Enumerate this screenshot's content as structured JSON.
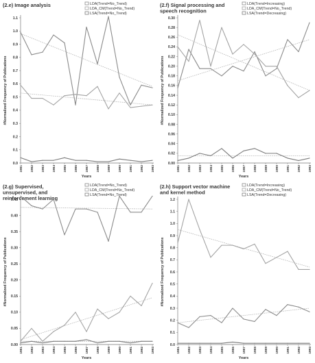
{
  "chart_data": [
    {
      "type": "line",
      "title": "(2.e) Image analysis",
      "xlabel": "Years",
      "ylabel": "#Normalized Frequency of Publications",
      "categories": [
        "1981",
        "1982",
        "1983",
        "1984",
        "1985",
        "1986",
        "1987",
        "1988",
        "1989",
        "1990",
        "1991",
        "1992",
        "1993"
      ],
      "ylim": [
        0,
        1.1
      ],
      "yticks": [
        "0.0",
        "0.1",
        "0.2",
        "0.3",
        "0.4",
        "0.5",
        "0.6",
        "0.7",
        "0.8",
        "0.9",
        "1.0",
        "1.1"
      ],
      "grid": false,
      "legend_position": "top-right",
      "series": [
        {
          "name": "LDA(Trend=No_Trend)",
          "values": [
            0.99,
            0.82,
            0.84,
            0.97,
            0.91,
            0.44,
            1.03,
            0.75,
            1.11,
            0.65,
            0.44,
            0.59,
            0.57
          ],
          "trend": [
            0.98,
            0.58
          ]
        },
        {
          "name": "LDA_CM(Trend=No_Trend)",
          "values": [
            0.59,
            0.49,
            0.49,
            0.44,
            0.51,
            0.52,
            0.51,
            0.58,
            0.41,
            0.53,
            0.42,
            0.43,
            0.44
          ],
          "trend": [
            0.53,
            0.44
          ]
        },
        {
          "name": "LSA(Trend=No_Trend)",
          "values": [
            0.04,
            0.01,
            0.02,
            0.02,
            0.04,
            0.02,
            0.02,
            0.01,
            0.01,
            0.03,
            0.02,
            0.01,
            0.02
          ]
        }
      ]
    },
    {
      "type": "line",
      "title": "(2.f) Signal processing and speech recognition",
      "xlabel": "Years",
      "ylabel": "#Normalized Frequency of Publications",
      "categories": [
        "1981",
        "1982",
        "1983",
        "1984",
        "1985",
        "1986",
        "1987",
        "1988",
        "1989",
        "1990",
        "1991",
        "1992",
        "1993"
      ],
      "ylim": [
        0,
        0.3
      ],
      "yticks": [
        "0.00",
        "0.02",
        "0.04",
        "0.06",
        "0.08",
        "0.10",
        "0.12",
        "0.14",
        "0.16",
        "0.18",
        "0.20",
        "0.22",
        "0.24",
        "0.26",
        "0.28",
        "0.30"
      ],
      "grid": false,
      "legend_position": "top-right",
      "series": [
        {
          "name": "LDA(Trend=Increasing)",
          "values": [
            0.155,
            0.235,
            0.195,
            0.195,
            0.18,
            0.2,
            0.19,
            0.23,
            0.18,
            0.195,
            0.255,
            0.23,
            0.29
          ],
          "trend": [
            0.17,
            0.255
          ]
        },
        {
          "name": "LDA_CM(Trend=No_Trend)",
          "values": [
            0.24,
            0.21,
            0.295,
            0.2,
            0.28,
            0.225,
            0.245,
            0.225,
            0.2,
            0.2,
            0.16,
            0.135,
            0.15
          ],
          "trend": [
            0.265,
            0.15
          ]
        },
        {
          "name": "LSA(Trend=Decreasing)",
          "values": [
            0.005,
            0.01,
            0.02,
            0.015,
            0.03,
            0.01,
            0.025,
            0.03,
            0.02,
            0.02,
            0.01,
            0.005,
            0.01
          ],
          "trend": [
            0.015,
            0.015
          ]
        }
      ]
    },
    {
      "type": "line",
      "title": "(2.g) Supervised, unsupervised, and reinforcement learning",
      "xlabel": "Years",
      "ylabel": "#Normalized Frequency of Publications",
      "categories": [
        "1981",
        "1982",
        "1983",
        "1984",
        "1985",
        "1986",
        "1987",
        "1988",
        "1989",
        "1990",
        "1991",
        "1992",
        "1993"
      ],
      "ylim": [
        0,
        0.45
      ],
      "yticks": [
        "0.00",
        "0.05",
        "0.10",
        "0.15",
        "0.20",
        "0.25",
        "0.30",
        "0.35",
        "0.40",
        "0.45"
      ],
      "grid": false,
      "legend_position": "top-right",
      "series": [
        {
          "name": "LDA(Trend=No_Trend)",
          "values": [
            0.46,
            0.43,
            0.42,
            0.45,
            0.34,
            0.42,
            0.42,
            0.41,
            0.32,
            0.46,
            0.41,
            0.41,
            0.46
          ],
          "trend": [
            0.425,
            0.42
          ]
        },
        {
          "name": "LDA_CM(Trend=No_Trend)",
          "values": [
            0.01,
            0.05,
            0.01,
            0.04,
            0.06,
            0.1,
            0.04,
            0.11,
            0.08,
            0.1,
            0.15,
            0.12,
            0.19
          ],
          "trend": [
            0.015,
            0.145
          ]
        },
        {
          "name": "LSA(Trend=No_Trend)",
          "values": [
            0.005,
            0.01,
            0.005,
            0.01,
            0.01,
            0.01,
            0.015,
            0.005,
            0.01,
            0.01,
            0.005,
            0.01,
            0.01
          ],
          "trend": [
            0.01,
            0.01
          ]
        }
      ]
    },
    {
      "type": "line",
      "title": "(2.h) Support vector machine and kernel method",
      "xlabel": "Years",
      "ylabel": "#Normalized Frequency of Publications",
      "categories": [
        "1981",
        "1982",
        "1983",
        "1984",
        "1985",
        "1986",
        "1987",
        "1988",
        "1989",
        "1990",
        "1991",
        "1992",
        "1993"
      ],
      "ylim": [
        0,
        1.2
      ],
      "yticks": [
        "0.0",
        "0.1",
        "0.2",
        "0.3",
        "0.4",
        "0.5",
        "0.6",
        "0.7",
        "0.8",
        "0.9",
        "1.0",
        "1.1",
        "1.2"
      ],
      "grid": false,
      "legend_position": "top-right",
      "series": [
        {
          "name": "LDA(Trend=Increasing)",
          "values": [
            0.18,
            0.14,
            0.23,
            0.24,
            0.18,
            0.3,
            0.21,
            0.19,
            0.29,
            0.24,
            0.33,
            0.31,
            0.27
          ],
          "trend": [
            0.18,
            0.3
          ]
        },
        {
          "name": "LDA_CM(Trend=No_Trend)",
          "values": [
            0.84,
            1.2,
            0.95,
            0.72,
            0.82,
            0.82,
            0.79,
            0.83,
            0.67,
            0.72,
            0.77,
            0.62,
            0.62
          ],
          "trend": [
            0.95,
            0.64
          ]
        },
        {
          "name": "LSA(Trend=Decreasing)",
          "values": [
            0.01,
            0.01,
            0.01,
            0.01,
            0.01,
            0.02,
            0.01,
            0.01,
            0.01,
            0.01,
            0.01,
            0.01,
            0.01
          ]
        }
      ]
    }
  ]
}
